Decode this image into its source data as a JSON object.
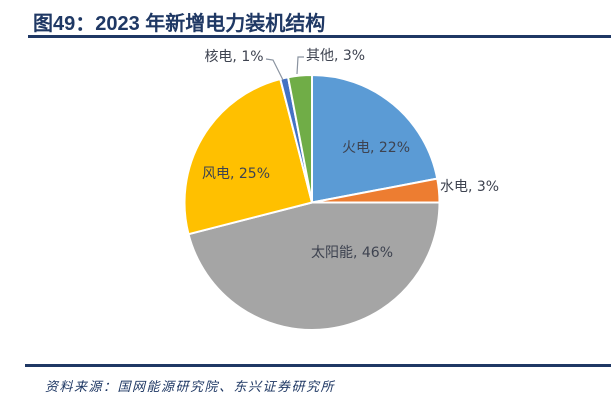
{
  "header": {
    "title": "图49：2023 年新增电力装机结构"
  },
  "footer": {
    "source": "资料来源：国网能源研究院、东兴证券研究所"
  },
  "colors": {
    "title_navy": "#1F3864",
    "rule_navy": "#1F3864",
    "label_text": "#3E4350",
    "leader_line": "#8A93A0",
    "background": "#FFFFFF"
  },
  "chart_data": {
    "type": "pie",
    "title": "2023 年新增电力装机结构",
    "direction": "clockwise",
    "start_angle_deg": 0,
    "legend": "none",
    "label_format": "category, percent",
    "slices": [
      {
        "name": "火电",
        "value": 22,
        "label": "火电, 22%",
        "color": "#5B9BD5",
        "label_placement": "inside"
      },
      {
        "name": "水电",
        "value": 3,
        "label": "水电, 3%",
        "color": "#ED7D31",
        "label_placement": "outside-right"
      },
      {
        "name": "太阳能",
        "value": 46,
        "label": "太阳能, 46%",
        "color": "#A5A5A5",
        "label_placement": "inside"
      },
      {
        "name": "风电",
        "value": 25,
        "label": "风电, 25%",
        "color": "#FFC000",
        "label_placement": "inside"
      },
      {
        "name": "核电",
        "value": 1,
        "label": "核电, 1%",
        "color": "#4472C4",
        "label_placement": "outside-top-leader"
      },
      {
        "name": "其他",
        "value": 3,
        "label": "其他, 3%",
        "color": "#70AD47",
        "label_placement": "outside-top-leader"
      }
    ]
  }
}
